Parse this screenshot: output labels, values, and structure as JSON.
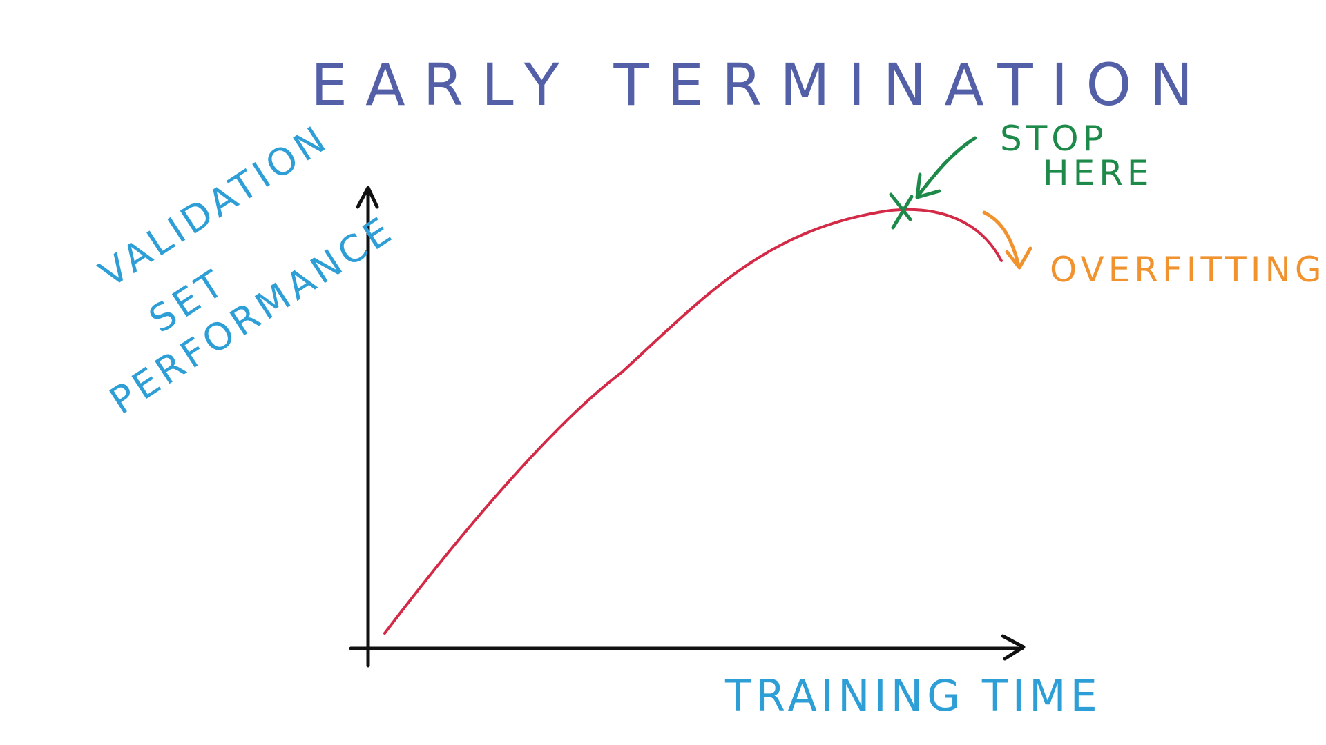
{
  "title": "EARLY TERMINATION",
  "axes": {
    "x_label": "TRAINING TIME",
    "y_label_lines": [
      "VALIDATION",
      "SET",
      "PERFORMANCE"
    ]
  },
  "annotations": {
    "stop_here_lines": [
      "STOP",
      "HERE"
    ],
    "overfitting": "OVERFITTING"
  },
  "colors": {
    "title": "#5360a8",
    "axis": "#111111",
    "axis_labels": "#2e9fd6",
    "curve": "#d32a47",
    "stop_marker": "#1e8a4a",
    "overfitting": "#f0932f"
  }
}
